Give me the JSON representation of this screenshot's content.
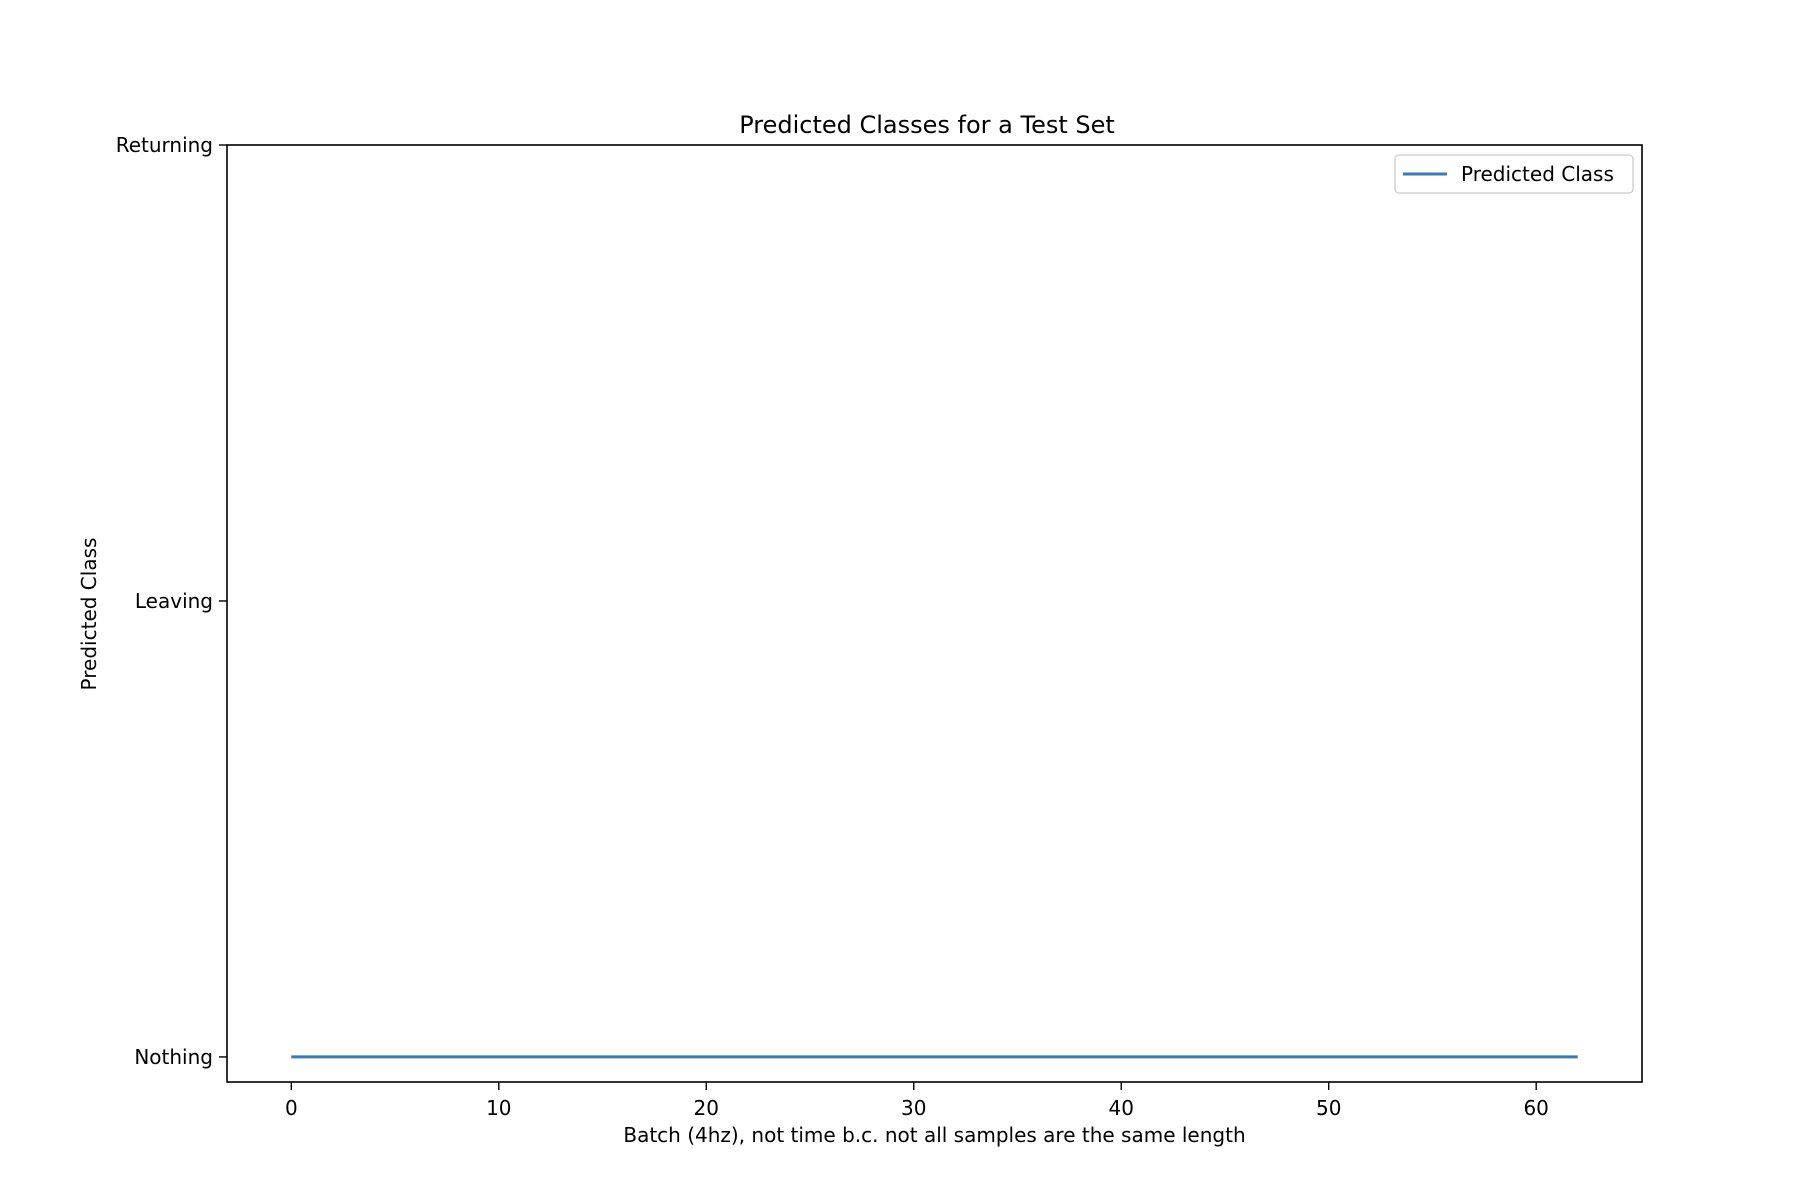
{
  "chart_data": {
    "type": "line",
    "title": "Predicted Classes for a Test Set",
    "xlabel": "Batch (4hz), not time b.c. not all samples are the same length",
    "ylabel": "Predicted Class",
    "xlim": [
      -3.1,
      65.1
    ],
    "ylim": [
      -0.055,
      2.0
    ],
    "x_ticks": [
      0,
      10,
      20,
      30,
      40,
      50,
      60
    ],
    "x_tick_labels": [
      "0",
      "10",
      "20",
      "30",
      "40",
      "50",
      "60"
    ],
    "y_ticks": [
      0,
      1,
      2
    ],
    "y_tick_labels": [
      "Nothing",
      "Leaving",
      "Returning"
    ],
    "grid": false,
    "legend": {
      "position": "top-right",
      "entries": [
        "Predicted Class"
      ]
    },
    "series": [
      {
        "name": "Predicted Class",
        "color": "#3b78b8",
        "x": [
          0,
          62
        ],
        "y": [
          0,
          0
        ]
      }
    ]
  }
}
